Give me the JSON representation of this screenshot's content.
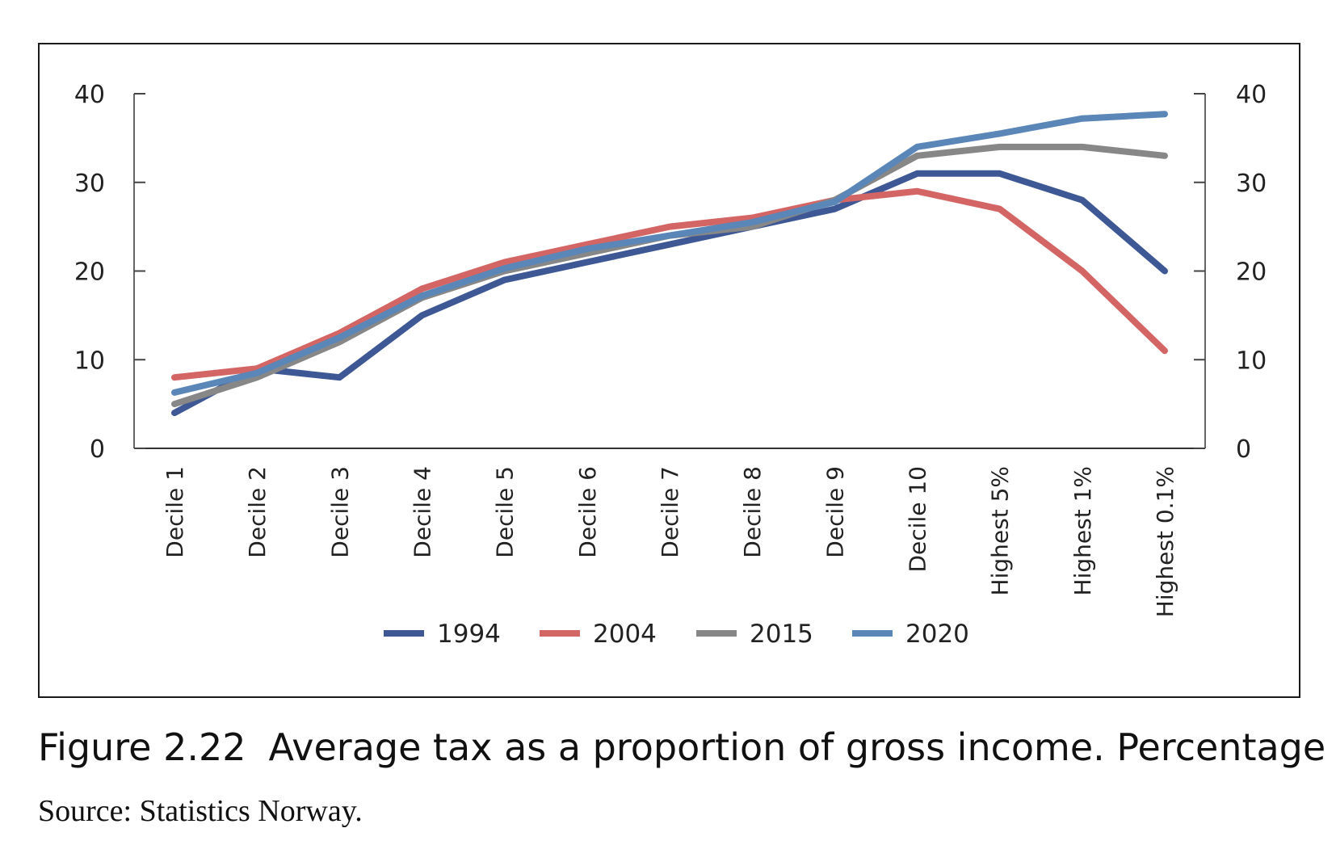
{
  "chart_data": {
    "type": "line",
    "categories": [
      "Decile 1",
      "Decile 2",
      "Decile 3",
      "Decile 4",
      "Decile 5",
      "Decile 6",
      "Decile 7",
      "Decile 8",
      "Decile 9",
      "Decile 10",
      "Highest 5%",
      "Highest 1%",
      "Highest 0.1%"
    ],
    "series": [
      {
        "name": "1994",
        "color": "#3d5894",
        "values": [
          4,
          9,
          8,
          15,
          19,
          21,
          23,
          25,
          27,
          31,
          31,
          28,
          20
        ]
      },
      {
        "name": "2004",
        "color": "#d46565",
        "values": [
          8,
          9,
          13,
          18,
          21,
          23,
          25,
          26,
          28,
          29,
          27,
          20,
          11
        ]
      },
      {
        "name": "2015",
        "color": "#878787",
        "values": [
          5,
          8,
          12,
          17,
          20,
          22,
          24,
          25,
          28,
          33,
          34,
          34,
          33
        ]
      },
      {
        "name": "2020",
        "color": "#5b86b8",
        "values": [
          6.3,
          8.5,
          12.5,
          17.2,
          20.3,
          22.5,
          24,
          25.5,
          27.8,
          34,
          35.5,
          37.2,
          37.7
        ]
      }
    ],
    "ylim": [
      0,
      40
    ],
    "yticks": [
      "0",
      "10",
      "20",
      "30",
      "40"
    ],
    "secondary_yticks": [
      "0",
      "10",
      "20",
      "30",
      "40"
    ],
    "grid": false,
    "legend": "bottom",
    "title": "Figure 2.22 Average tax as a proportion of gross income. Percentage"
  },
  "caption": {
    "number": "Figure 2.22",
    "text": "Average tax as a proportion of gross income. Percentage"
  },
  "source": "Source: Statistics Norway."
}
